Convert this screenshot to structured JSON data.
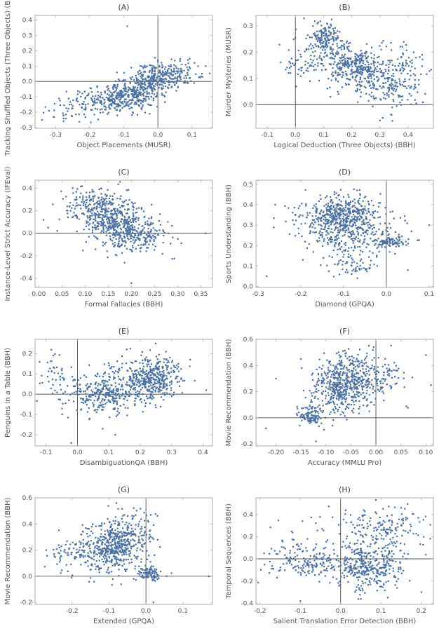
{
  "figure": {
    "background": "#ffffff"
  },
  "style": {
    "point_color": "#4a6fa5",
    "frame_color": "#9a9a9a",
    "zero_line_color": "#333333"
  },
  "chart_data": [
    {
      "type": "scatter",
      "title": "(A)",
      "xlabel": "Object Placements (MUSR)",
      "ylabel": "Tracking Shuffled Objects (Three Objects) (BBH)",
      "xlim": [
        -0.36,
        0.16
      ],
      "ylim": [
        -0.305,
        0.43
      ],
      "xticks": [
        -0.3,
        -0.2,
        -0.1,
        0.0,
        0.1
      ],
      "xtick_labels": [
        "-0.3",
        "-0.2",
        "-0.1",
        "0.0",
        "0.1"
      ],
      "yticks": [
        -0.3,
        -0.2,
        -0.1,
        0.0,
        0.1,
        0.2,
        0.3,
        0.4
      ],
      "ytick_labels": [
        "-0.3",
        "-0.2",
        "-0.1",
        "0.0",
        "0.1",
        "0.2",
        "0.3",
        "0.4"
      ],
      "zero_lines": {
        "x": 0,
        "y": 0
      },
      "clusters": [
        {
          "n": 340,
          "cx": -0.09,
          "cy": -0.09,
          "sx": 0.055,
          "sy": 0.055,
          "rho": 0.3
        },
        {
          "n": 260,
          "cx": -0.01,
          "cy": 0.02,
          "sx": 0.04,
          "sy": 0.05,
          "rho": 0.3
        },
        {
          "n": 120,
          "cx": -0.2,
          "cy": -0.15,
          "sx": 0.07,
          "sy": 0.05,
          "rho": 0.4
        },
        {
          "n": 80,
          "cx": 0.06,
          "cy": 0.06,
          "sx": 0.04,
          "sy": 0.04,
          "rho": 0.0
        }
      ],
      "points": [
        [
          -0.34,
          -0.25
        ],
        [
          -0.09,
          0.36
        ],
        [
          0.14,
          0.1
        ]
      ]
    },
    {
      "type": "scatter",
      "title": "(B)",
      "xlabel": "Logical Deduction (Three Objects) (BBH)",
      "ylabel": "Murder Mysteries (MUSR)",
      "xlim": [
        -0.14,
        0.49
      ],
      "ylim": [
        -0.09,
        0.34
      ],
      "xticks": [
        -0.1,
        0.0,
        0.1,
        0.2,
        0.3,
        0.4
      ],
      "xtick_labels": [
        "-0.1",
        "0.0",
        "0.1",
        "0.2",
        "0.3",
        "0.4"
      ],
      "yticks": [
        0.0,
        0.1,
        0.2,
        0.3
      ],
      "ytick_labels": [
        "0.0",
        "0.1",
        "0.2",
        "0.3"
      ],
      "zero_lines": {
        "x": 0,
        "y": 0
      },
      "clusters": [
        {
          "n": 150,
          "cx": 0.1,
          "cy": 0.25,
          "sx": 0.025,
          "sy": 0.03,
          "rho": 0.0
        },
        {
          "n": 330,
          "cx": 0.2,
          "cy": 0.15,
          "sx": 0.06,
          "sy": 0.045,
          "rho": -0.3
        },
        {
          "n": 200,
          "cx": 0.3,
          "cy": 0.1,
          "sx": 0.06,
          "sy": 0.05,
          "rho": -0.3
        },
        {
          "n": 60,
          "cx": 0.02,
          "cy": 0.17,
          "sx": 0.04,
          "sy": 0.04,
          "rho": 0.0
        },
        {
          "n": 70,
          "cx": 0.4,
          "cy": 0.12,
          "sx": 0.04,
          "sy": 0.06,
          "rho": 0.0
        }
      ],
      "points": [
        [
          0.3,
          -0.06
        ],
        [
          0.31,
          -0.05
        ],
        [
          0.42,
          0.2
        ],
        [
          0.45,
          0.19
        ]
      ]
    },
    {
      "type": "scatter",
      "title": "(C)",
      "xlabel": "Formal Fallacies (BBH)",
      "ylabel": "Instance-Level Strict Accuracy (IFEval)",
      "xlim": [
        -0.008,
        0.375
      ],
      "ylim": [
        -0.48,
        0.47
      ],
      "xticks": [
        0.0,
        0.05,
        0.1,
        0.15,
        0.2,
        0.25,
        0.3,
        0.35
      ],
      "xtick_labels": [
        "0.00",
        "0.05",
        "0.10",
        "0.15",
        "0.20",
        "0.25",
        "0.30",
        "0.35"
      ],
      "yticks": [
        -0.4,
        -0.2,
        0.0,
        0.2,
        0.4
      ],
      "ytick_labels": [
        "-0.4",
        "-0.2",
        "0.0",
        "0.2",
        "0.4"
      ],
      "zero_lines": {
        "y": 0
      },
      "clusters": [
        {
          "n": 420,
          "cx": 0.16,
          "cy": 0.1,
          "sx": 0.04,
          "sy": 0.13,
          "rho": -0.3
        },
        {
          "n": 200,
          "cx": 0.21,
          "cy": 0.0,
          "sx": 0.035,
          "sy": 0.08,
          "rho": -0.2
        },
        {
          "n": 120,
          "cx": 0.12,
          "cy": 0.25,
          "sx": 0.035,
          "sy": 0.08,
          "rho": 0.0
        }
      ],
      "points": [
        [
          0.01,
          0.12
        ],
        [
          0.02,
          0.05
        ],
        [
          0.3,
          -0.05
        ],
        [
          0.36,
          0.0
        ],
        [
          0.2,
          -0.44
        ],
        [
          0.28,
          0.0
        ]
      ]
    },
    {
      "type": "scatter",
      "title": "(D)",
      "xlabel": "Diamond (GPQA)",
      "ylabel": "Sports Understanding (BBH)",
      "xlim": [
        -0.305,
        0.11
      ],
      "ylim": [
        -0.005,
        0.52
      ],
      "xticks": [
        -0.3,
        -0.2,
        -0.1,
        0.0,
        0.1
      ],
      "xtick_labels": [
        "-0.3",
        "-0.2",
        "-0.1",
        "0.0",
        "0.1"
      ],
      "yticks": [
        0.0,
        0.1,
        0.2,
        0.3,
        0.4,
        0.5
      ],
      "ytick_labels": [
        "0.0",
        "0.1",
        "0.2",
        "0.3",
        "0.4",
        "0.5"
      ],
      "zero_lines": {
        "x": 0
      },
      "clusters": [
        {
          "n": 350,
          "cx": -0.1,
          "cy": 0.36,
          "sx": 0.04,
          "sy": 0.045,
          "rho": 0.1
        },
        {
          "n": 250,
          "cx": -0.08,
          "cy": 0.26,
          "sx": 0.05,
          "sy": 0.06,
          "rho": 0.0
        },
        {
          "n": 90,
          "cx": 0.01,
          "cy": 0.22,
          "sx": 0.02,
          "sy": 0.012,
          "rho": 0.0
        },
        {
          "n": 100,
          "cx": -0.14,
          "cy": 0.32,
          "sx": 0.06,
          "sy": 0.06,
          "rho": 0.0
        },
        {
          "n": 60,
          "cx": -0.08,
          "cy": 0.1,
          "sx": 0.03,
          "sy": 0.03,
          "rho": 0.0
        }
      ],
      "points": [
        [
          -0.26,
          0.4
        ],
        [
          -0.28,
          0.05
        ],
        [
          0.1,
          0.3
        ],
        [
          0.02,
          0.16
        ],
        [
          0.05,
          0.08
        ]
      ]
    },
    {
      "type": "scatter",
      "title": "(E)",
      "xlabel": "DisambiguationQA (BBH)",
      "ylabel": "Penguins in a Table (BBH)",
      "xlim": [
        -0.135,
        0.43
      ],
      "ylim": [
        -0.255,
        0.27
      ],
      "xticks": [
        -0.1,
        0.0,
        0.1,
        0.2,
        0.3,
        0.4
      ],
      "xtick_labels": [
        "-0.1",
        "0.0",
        "0.1",
        "0.2",
        "0.3",
        "0.4"
      ],
      "yticks": [
        -0.2,
        -0.1,
        0.0,
        0.1,
        0.2
      ],
      "ytick_labels": [
        "-0.2",
        "-0.1",
        "0.0",
        "0.1",
        "0.2"
      ],
      "zero_lines": {
        "x": 0,
        "y": 0
      },
      "clusters": [
        {
          "n": 380,
          "cx": 0.24,
          "cy": 0.08,
          "sx": 0.05,
          "sy": 0.05,
          "rho": 0.1
        },
        {
          "n": 230,
          "cx": 0.07,
          "cy": 0.0,
          "sx": 0.05,
          "sy": 0.05,
          "rho": 0.0
        },
        {
          "n": 140,
          "cx": 0.15,
          "cy": 0.03,
          "sx": 0.06,
          "sy": 0.06,
          "rho": 0.0
        },
        {
          "n": 50,
          "cx": -0.07,
          "cy": 0.08,
          "sx": 0.03,
          "sy": 0.06,
          "rho": 0.0
        }
      ],
      "points": [
        [
          -0.02,
          -0.24
        ],
        [
          0.41,
          0.02
        ],
        [
          0.12,
          -0.2
        ],
        [
          0.08,
          -0.17
        ]
      ]
    },
    {
      "type": "scatter",
      "title": "(F)",
      "xlabel": "Accuracy (MMLU Pro)",
      "ylabel": "Movie Recommendation (BBH)",
      "xlim": [
        -0.24,
        0.115
      ],
      "ylim": [
        -0.215,
        0.6
      ],
      "xticks": [
        -0.2,
        -0.15,
        -0.1,
        -0.05,
        0.0,
        0.05,
        0.1
      ],
      "xtick_labels": [
        "-0.20",
        "-0.15",
        "-0.10",
        "-0.05",
        "0.00",
        "0.05",
        "0.10"
      ],
      "yticks": [
        -0.2,
        0.0,
        0.2,
        0.4,
        0.6
      ],
      "ytick_labels": [
        "-0.2",
        "0.0",
        "0.2",
        "0.4",
        "0.6"
      ],
      "zero_lines": {
        "x": 0,
        "y": 0
      },
      "clusters": [
        {
          "n": 400,
          "cx": -0.07,
          "cy": 0.22,
          "sx": 0.03,
          "sy": 0.1,
          "rho": 0.1
        },
        {
          "n": 200,
          "cx": -0.05,
          "cy": 0.35,
          "sx": 0.03,
          "sy": 0.08,
          "rho": 0.0
        },
        {
          "n": 100,
          "cx": -0.13,
          "cy": 0.02,
          "sx": 0.012,
          "sy": 0.035,
          "rho": 0.0
        },
        {
          "n": 70,
          "cx": 0.02,
          "cy": 0.3,
          "sx": 0.02,
          "sy": 0.08,
          "rho": 0.0
        }
      ],
      "points": [
        [
          -0.2,
          0.3
        ],
        [
          -0.15,
          0.45
        ],
        [
          -0.12,
          -0.18
        ],
        [
          0.1,
          0.48
        ],
        [
          0.11,
          0.25
        ],
        [
          -0.22,
          -0.08
        ]
      ]
    },
    {
      "type": "scatter",
      "title": "(G)",
      "xlabel": "Extended (GPQA)",
      "ylabel": "Movie Recommendation (BBH)",
      "xlim": [
        -0.3,
        0.18
      ],
      "ylim": [
        -0.215,
        0.6
      ],
      "xticks": [
        -0.2,
        -0.1,
        0.0,
        0.1
      ],
      "xtick_labels": [
        "-0.2",
        "-0.1",
        "0.0",
        "0.1"
      ],
      "yticks": [
        -0.2,
        0.0,
        0.2,
        0.4,
        0.6
      ],
      "ytick_labels": [
        "-0.2",
        "0.0",
        "0.2",
        "0.4",
        "0.6"
      ],
      "zero_lines": {
        "x": 0,
        "y": 0
      },
      "clusters": [
        {
          "n": 380,
          "cx": -0.1,
          "cy": 0.22,
          "sx": 0.04,
          "sy": 0.1,
          "rho": 0.0
        },
        {
          "n": 180,
          "cx": -0.05,
          "cy": 0.3,
          "sx": 0.04,
          "sy": 0.1,
          "rho": 0.0
        },
        {
          "n": 90,
          "cx": 0.01,
          "cy": 0.02,
          "sx": 0.018,
          "sy": 0.03,
          "rho": 0.0
        },
        {
          "n": 80,
          "cx": -0.2,
          "cy": 0.18,
          "sx": 0.04,
          "sy": 0.06,
          "rho": 0.0
        }
      ],
      "points": [
        [
          -0.27,
          0.2
        ],
        [
          0.17,
          0.0
        ],
        [
          -0.08,
          0.56
        ],
        [
          0.02,
          -0.2
        ]
      ]
    },
    {
      "type": "scatter",
      "title": "(H)",
      "xlabel": "Salient Translation Error Detection (BBH)",
      "ylabel": "Temporal Sequences (BBH)",
      "xlim": [
        -0.21,
        0.23
      ],
      "ylim": [
        -0.41,
        0.55
      ],
      "xticks": [
        -0.2,
        -0.1,
        0.0,
        0.1,
        0.2
      ],
      "xtick_labels": [
        "-0.2",
        "-0.1",
        "0.0",
        "0.1",
        "0.2"
      ],
      "yticks": [
        -0.4,
        -0.2,
        0.0,
        0.2,
        0.4
      ],
      "ytick_labels": [
        "-0.4",
        "-0.2",
        "0.0",
        "0.2",
        "0.4"
      ],
      "zero_lines": {
        "x": 0,
        "y": 0
      },
      "clusters": [
        {
          "n": 330,
          "cx": 0.07,
          "cy": -0.08,
          "sx": 0.04,
          "sy": 0.1,
          "rho": 0.0
        },
        {
          "n": 170,
          "cx": -0.08,
          "cy": -0.03,
          "sx": 0.05,
          "sy": 0.08,
          "rho": 0.0
        },
        {
          "n": 150,
          "cx": 0.11,
          "cy": 0.28,
          "sx": 0.05,
          "sy": 0.1,
          "rho": 0.0
        },
        {
          "n": 60,
          "cx": -0.02,
          "cy": 0.2,
          "sx": 0.08,
          "sy": 0.12,
          "rho": 0.0
        }
      ],
      "points": [
        [
          -0.19,
          0.05
        ],
        [
          0.2,
          -0.3
        ],
        [
          0.15,
          0.46
        ],
        [
          -0.1,
          -0.38
        ],
        [
          0.05,
          -0.36
        ]
      ]
    }
  ]
}
